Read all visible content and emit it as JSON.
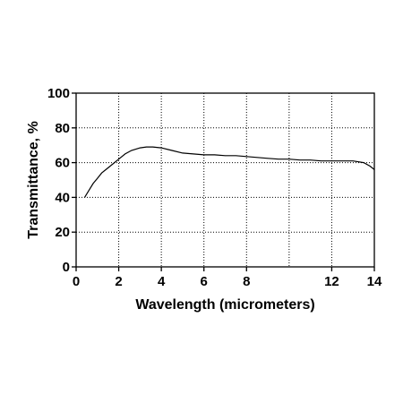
{
  "chart_data": {
    "type": "line",
    "xlabel": "Wavelength (micrometers)",
    "ylabel": "Transmittance, %",
    "xlim": [
      0,
      14
    ],
    "ylim": [
      0,
      100
    ],
    "x_ticks": [
      0,
      2,
      4,
      6,
      8,
      12,
      14
    ],
    "x_tick_labels": [
      "0",
      "2",
      "4",
      "6",
      "8",
      "12",
      "14"
    ],
    "x_gridlines": [
      2,
      4,
      6,
      8,
      10,
      12
    ],
    "y_ticks": [
      0,
      20,
      40,
      60,
      80,
      100
    ],
    "y_tick_labels": [
      "0",
      "20",
      "40",
      "60",
      "80",
      "100"
    ],
    "grid": true,
    "series": [
      {
        "color": "#000000",
        "x": [
          0.4,
          0.6,
          0.8,
          1.0,
          1.2,
          1.5,
          1.8,
          2.0,
          2.3,
          2.6,
          3.0,
          3.3,
          3.6,
          4.0,
          4.5,
          5.0,
          5.5,
          6.0,
          6.5,
          7.0,
          7.5,
          8.0,
          8.5,
          9.0,
          9.5,
          10.0,
          10.5,
          11.0,
          11.5,
          12.0,
          12.5,
          13.0,
          13.5,
          13.8,
          14.0
        ],
        "y": [
          40,
          44,
          48,
          51,
          54,
          57,
          60,
          62,
          65,
          67,
          68.5,
          69,
          69,
          68.5,
          67,
          65.5,
          65,
          64.5,
          64.5,
          64,
          64,
          63.5,
          63,
          62.5,
          62,
          62,
          61.5,
          61.5,
          61,
          61,
          61,
          61,
          60,
          58,
          56
        ]
      }
    ]
  }
}
